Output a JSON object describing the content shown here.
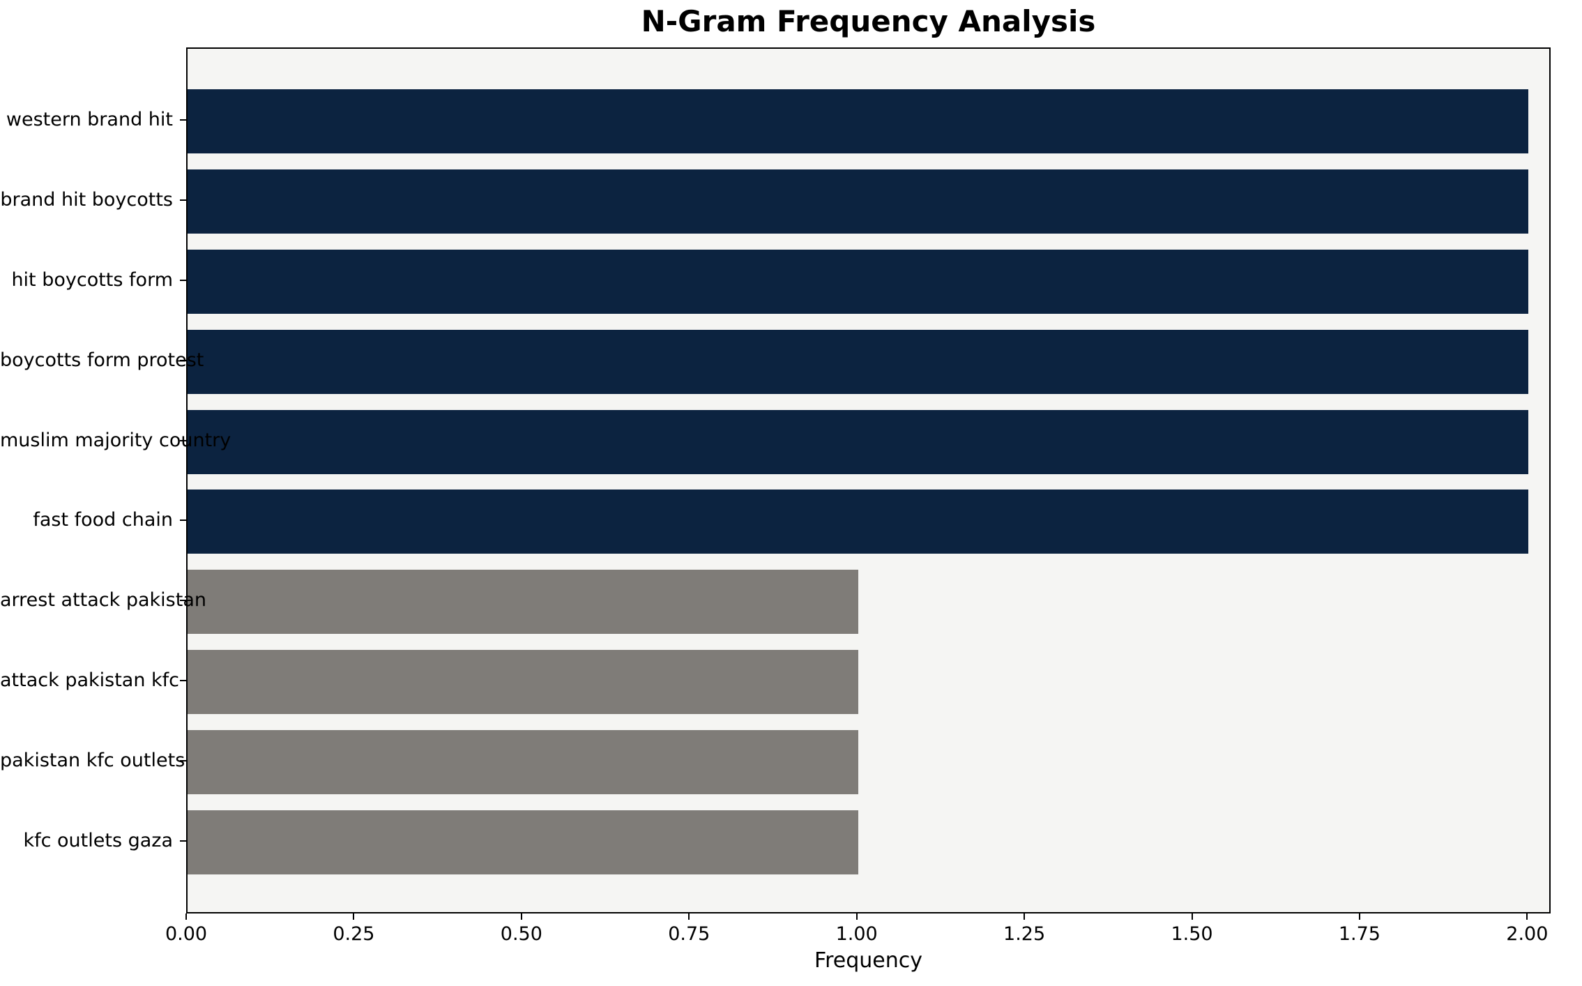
{
  "chart_data": {
    "type": "bar",
    "orientation": "horizontal",
    "title": "N-Gram Frequency Analysis",
    "xlabel": "Frequency",
    "ylabel": "",
    "categories": [
      "western brand hit",
      "brand hit boycotts",
      "hit boycotts form",
      "boycotts form protest",
      "muslim majority country",
      "fast food chain",
      "arrest attack pakistan",
      "attack pakistan kfc",
      "pakistan kfc outlets",
      "kfc outlets gaza"
    ],
    "values": [
      2,
      2,
      2,
      2,
      2,
      2,
      1,
      1,
      1,
      1
    ],
    "bar_colors": [
      "#0c2340",
      "#0c2340",
      "#0c2340",
      "#0c2340",
      "#0c2340",
      "#0c2340",
      "#7f7c78",
      "#7f7c78",
      "#7f7c78",
      "#7f7c78"
    ],
    "xlim": [
      0,
      2.035
    ],
    "xticks": [
      0.0,
      0.25,
      0.5,
      0.75,
      1.0,
      1.25,
      1.5,
      1.75,
      2.0
    ],
    "xtick_labels": [
      "0.00",
      "0.25",
      "0.50",
      "0.75",
      "1.00",
      "1.25",
      "1.50",
      "1.75",
      "2.00"
    ],
    "grid": false,
    "legend": "none",
    "plot_background": "#f5f5f3",
    "colors": {
      "high_frequency_bar": "#0c2340",
      "low_frequency_bar": "#7f7c78",
      "axis": "#000000"
    }
  }
}
